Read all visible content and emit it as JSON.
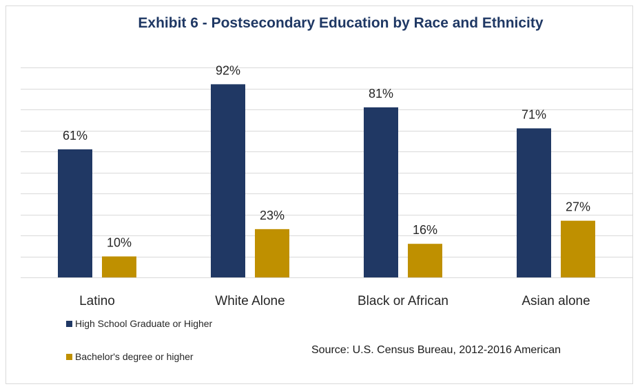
{
  "chart_data": {
    "type": "bar",
    "title": "Exhibit 6 - Postsecondary Education by Race and Ethnicity",
    "categories": [
      "Latino",
      "White Alone",
      "Black or African",
      "Asian alone"
    ],
    "series": [
      {
        "name": "High School Graduate or Higher",
        "values": [
          61,
          92,
          81,
          71
        ],
        "labels": [
          "61%",
          "92%",
          "81%",
          "71%"
        ],
        "color": "#203864"
      },
      {
        "name": "Bachelor's degree or higher",
        "values": [
          10,
          23,
          16,
          27
        ],
        "labels": [
          "10%",
          "23%",
          "16%",
          "27%"
        ],
        "color": "#bf9000"
      }
    ],
    "ylim": [
      0,
      100
    ],
    "grid": true,
    "legend": "bottom-left"
  },
  "source": "Source: U.S. Census Bureau, 2012-2016 American"
}
